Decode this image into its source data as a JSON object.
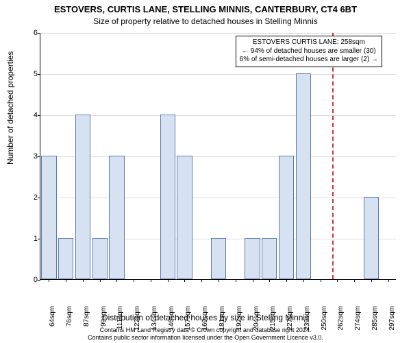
{
  "chart": {
    "type": "histogram",
    "title_main": "ESTOVERS, CURTIS LANE, STELLING MINNIS, CANTERBURY, CT4 6BT",
    "title_sub": "Size of property relative to detached houses in Stelling Minnis",
    "ylabel": "Number of detached properties",
    "x_axis_title": "Distribution of detached houses by size in Stelling Minnis",
    "background_color": "#ffffff",
    "grid_color": "#d9d9d9",
    "bar_fill": "#d6e1f1",
    "bar_border": "#5a7bb0",
    "ref_line_color": "#cc3333",
    "ylim": [
      0,
      6
    ],
    "ytick_step": 1,
    "yticks": [
      "0",
      "1",
      "2",
      "3",
      "4",
      "5",
      "6"
    ],
    "xtick_labels": [
      "64sqm",
      "76sqm",
      "87sqm",
      "99sqm",
      "111sqm",
      "122sqm",
      "134sqm",
      "146sqm",
      "157sqm",
      "169sqm",
      "181sqm",
      "192sqm",
      "204sqm",
      "215sqm",
      "227sqm",
      "239sqm",
      "250sqm",
      "262sqm",
      "274sqm",
      "285sqm",
      "297sqm"
    ],
    "bars": [
      3,
      1,
      4,
      1,
      3,
      0,
      0,
      4,
      3,
      0,
      1,
      0,
      1,
      1,
      3,
      5,
      0,
      0,
      0,
      2,
      0
    ],
    "ref_line_index": 16.7,
    "annotation": {
      "line1": "ESTOVERS CURTIS LANE: 258sqm",
      "line2": "← 94% of detached houses are smaller (30)",
      "line3": "6% of semi-detached houses are larger (2) →"
    },
    "footer_line1": "Contains HM Land Registry data © Crown copyright and database right 2024.",
    "footer_line2": "Contains public sector information licensed under the Open Government Licence v3.0.",
    "title_fontsize": 13,
    "sub_fontsize": 12,
    "label_fontsize": 12,
    "tick_fontsize": 10,
    "footer_fontsize": 9
  }
}
